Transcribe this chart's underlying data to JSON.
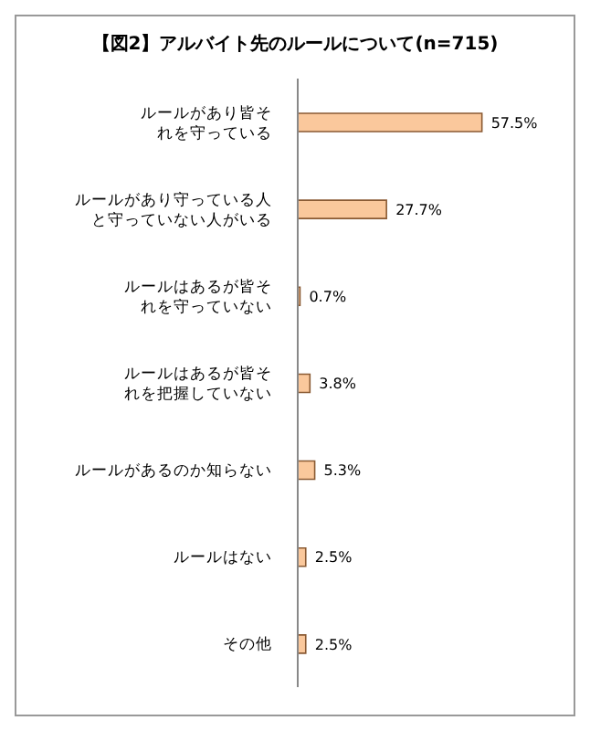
{
  "chart_data": {
    "type": "bar",
    "orientation": "horizontal",
    "title": "【図2】アルバイト先のルールについて(n=715)",
    "categories": [
      "ルールがあり皆それを守っている",
      "ルールがあり守っている人と守っていない人がいる",
      "ルールはあるが皆それを守っていない",
      "ルールはあるが皆それを把握していない",
      "ルールがあるのか知らない",
      "ルールはない",
      "その他"
    ],
    "values": [
      57.5,
      27.7,
      0.7,
      3.8,
      5.3,
      2.5,
      2.5
    ],
    "value_labels": [
      "57.5%",
      "27.7%",
      "0.7%",
      "3.8%",
      "5.3%",
      "2.5%",
      "2.5%"
    ],
    "color": "#fac89c",
    "legend": false,
    "grid": false
  }
}
